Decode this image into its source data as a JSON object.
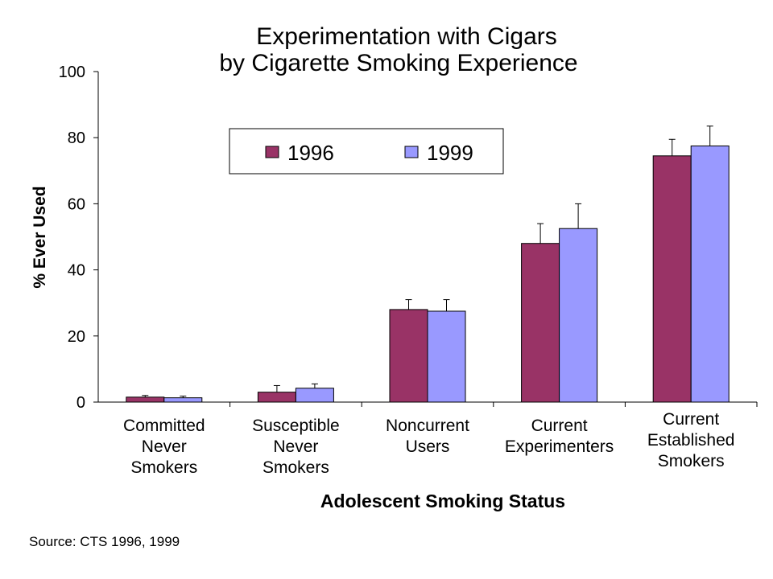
{
  "chart_data": {
    "type": "bar",
    "title": [
      "Experimentation with Cigars",
      "by Cigarette Smoking Experience"
    ],
    "xlabel": "Adolescent Smoking Status",
    "ylabel": "% Ever Used",
    "ylim": [
      0,
      100
    ],
    "yticks": [
      "0",
      "20",
      "40",
      "60",
      "80",
      "100"
    ],
    "categories": [
      [
        "Committed",
        "Never",
        "Smokers"
      ],
      [
        "Susceptible",
        "Never",
        "Smokers"
      ],
      [
        "Noncurrent",
        "Users"
      ],
      [
        "Current",
        "Experimenters"
      ],
      [
        "Current",
        "Established",
        "Smokers"
      ]
    ],
    "series": [
      {
        "name": "1996",
        "color": "#993366",
        "values": [
          1.5,
          3.0,
          28.0,
          48.0,
          74.5
        ],
        "error_upper": [
          2.0,
          5.0,
          31.0,
          54.0,
          79.5
        ]
      },
      {
        "name": "1999",
        "color": "#9999ff",
        "values": [
          1.3,
          4.2,
          27.5,
          52.5,
          77.5
        ],
        "error_upper": [
          1.8,
          5.5,
          31.0,
          60.0,
          83.5
        ]
      }
    ],
    "legend_position": "top-center",
    "grid": false
  },
  "source": "Source:  CTS 1996, 1999"
}
